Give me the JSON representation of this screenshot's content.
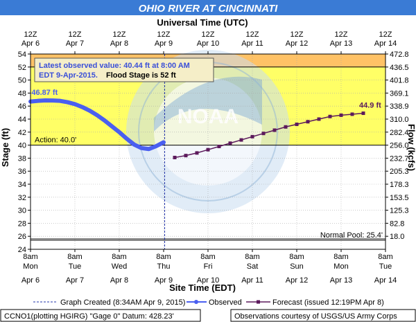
{
  "chart_data": {
    "type": "line",
    "title": "OHIO RIVER AT CINCINNATI",
    "top_axis_title": "Universal Time (UTC)",
    "bottom_axis_title": "Site Time (EDT)",
    "ylabel_left": "Stage (ft)",
    "ylabel_right": "Flow (kcfs)",
    "ylim": [
      24,
      54
    ],
    "y_ticks": [
      24,
      26,
      28,
      30,
      32,
      34,
      36,
      38,
      40,
      42,
      44,
      46,
      48,
      50,
      52,
      54
    ],
    "flow_ticks": [
      "472.8",
      "436.5",
      "401.8",
      "369.1",
      "338.9",
      "310.0",
      "282.4",
      "256.0",
      "232.7",
      "205.3",
      "178.3",
      "153.5",
      "125.3",
      "82.8",
      "18.0"
    ],
    "flow_tick_stages": [
      54,
      52,
      50,
      48,
      46,
      44,
      42,
      40,
      38,
      36,
      34,
      32,
      30,
      28,
      26
    ],
    "xlim": [
      "2015-04-06 08:00",
      "2015-04-14 08:00"
    ],
    "utc_ticks": [
      {
        "hour": "12Z",
        "date": "Apr 6"
      },
      {
        "hour": "12Z",
        "date": "Apr 7"
      },
      {
        "hour": "12Z",
        "date": "Apr 8"
      },
      {
        "hour": "12Z",
        "date": "Apr 9"
      },
      {
        "hour": "12Z",
        "date": "Apr 10"
      },
      {
        "hour": "12Z",
        "date": "Apr 11"
      },
      {
        "hour": "12Z",
        "date": "Apr 12"
      },
      {
        "hour": "12Z",
        "date": "Apr 13"
      },
      {
        "hour": "12Z",
        "date": "Apr 14"
      }
    ],
    "edt_ticks": [
      {
        "time": "8am",
        "day": "Mon",
        "date": "Apr 6"
      },
      {
        "time": "8am",
        "day": "Tue",
        "date": "Apr 7"
      },
      {
        "time": "8am",
        "day": "Wed",
        "date": "Apr 8"
      },
      {
        "time": "8am",
        "day": "Thu",
        "date": "Apr 9"
      },
      {
        "time": "8am",
        "day": "Fri",
        "date": "Apr 10"
      },
      {
        "time": "8am",
        "day": "Sat",
        "date": "Apr 11"
      },
      {
        "time": "8am",
        "day": "Sun",
        "date": "Apr 12"
      },
      {
        "time": "8am",
        "day": "Mon",
        "date": "Apr 13"
      },
      {
        "time": "8am",
        "day": "Tue",
        "date": "Apr 14"
      }
    ],
    "bands": [
      {
        "name": "flood",
        "from": 52,
        "to": 54,
        "color": "#ffc266"
      },
      {
        "name": "action",
        "from": 40,
        "to": 52,
        "color": "#ffff66"
      },
      {
        "name": "normal",
        "from": 24,
        "to": 40,
        "color": "#ffffff"
      }
    ],
    "thresholds": [
      {
        "label": "Action: 40.0'",
        "value": 40
      },
      {
        "label": "Normal Pool: 25.4'",
        "value": 25.4
      }
    ],
    "graph_created": "2015-04-09 08:34",
    "peak_label": "46.87 ft",
    "forecast_label": "44.9 ft",
    "info_box": {
      "line1": "Latest observed value: 40.44 ft at 8:00 AM",
      "line2a": "EDT 9-Apr-2015.",
      "line2b": "Flood Stage is 52 ft"
    },
    "series": [
      {
        "name": "Observed",
        "color": "#4a5ff0",
        "points": [
          [
            "2015-04-06 08:00",
            46.7
          ],
          [
            "2015-04-06 12:00",
            46.8
          ],
          [
            "2015-04-06 16:00",
            46.87
          ],
          [
            "2015-04-06 20:00",
            46.86
          ],
          [
            "2015-04-07 00:00",
            46.8
          ],
          [
            "2015-04-07 04:00",
            46.6
          ],
          [
            "2015-04-07 08:00",
            46.3
          ],
          [
            "2015-04-07 12:00",
            45.85
          ],
          [
            "2015-04-07 16:00",
            45.3
          ],
          [
            "2015-04-07 20:00",
            44.6
          ],
          [
            "2015-04-08 00:00",
            43.8
          ],
          [
            "2015-04-08 04:00",
            42.9
          ],
          [
            "2015-04-08 08:00",
            42.0
          ],
          [
            "2015-04-08 12:00",
            41.0
          ],
          [
            "2015-04-08 16:00",
            40.1
          ],
          [
            "2015-04-08 20:00",
            39.55
          ],
          [
            "2015-04-09 00:00",
            39.4
          ],
          [
            "2015-04-09 04:00",
            39.85
          ],
          [
            "2015-04-09 08:00",
            40.44
          ]
        ]
      },
      {
        "name": "Forecast (issued 12:19PM Apr 8)",
        "color": "#5c1a5c",
        "points": [
          [
            "2015-04-09 14:00",
            38.1
          ],
          [
            "2015-04-09 20:00",
            38.4
          ],
          [
            "2015-04-10 02:00",
            38.8
          ],
          [
            "2015-04-10 08:00",
            39.3
          ],
          [
            "2015-04-10 14:00",
            39.8
          ],
          [
            "2015-04-10 20:00",
            40.3
          ],
          [
            "2015-04-11 02:00",
            40.8
          ],
          [
            "2015-04-11 08:00",
            41.3
          ],
          [
            "2015-04-11 14:00",
            41.8
          ],
          [
            "2015-04-11 20:00",
            42.3
          ],
          [
            "2015-04-12 02:00",
            42.8
          ],
          [
            "2015-04-12 08:00",
            43.2
          ],
          [
            "2015-04-12 14:00",
            43.6
          ],
          [
            "2015-04-12 20:00",
            44.0
          ],
          [
            "2015-04-13 02:00",
            44.4
          ],
          [
            "2015-04-13 08:00",
            44.6
          ],
          [
            "2015-04-13 14:00",
            44.75
          ],
          [
            "2015-04-13 20:00",
            44.9
          ]
        ]
      }
    ],
    "legend": {
      "graph_created": "Graph Created (8:34AM Apr 9, 2015)",
      "observed": "Observed",
      "forecast": "Forecast (issued 12:19PM Apr 8)"
    },
    "footer": {
      "left": "CCNO1(plotting HGIRG) \"Gage 0\" Datum: 428.23'",
      "right": "Observations courtesy of USGS/US Army Corps"
    },
    "watermark_text": "NATIONAL OCEANIC AND ATMOSPHERIC ADMINISTRATION · U.S. DEPARTMENT OF COMMERCE · NOAA"
  }
}
